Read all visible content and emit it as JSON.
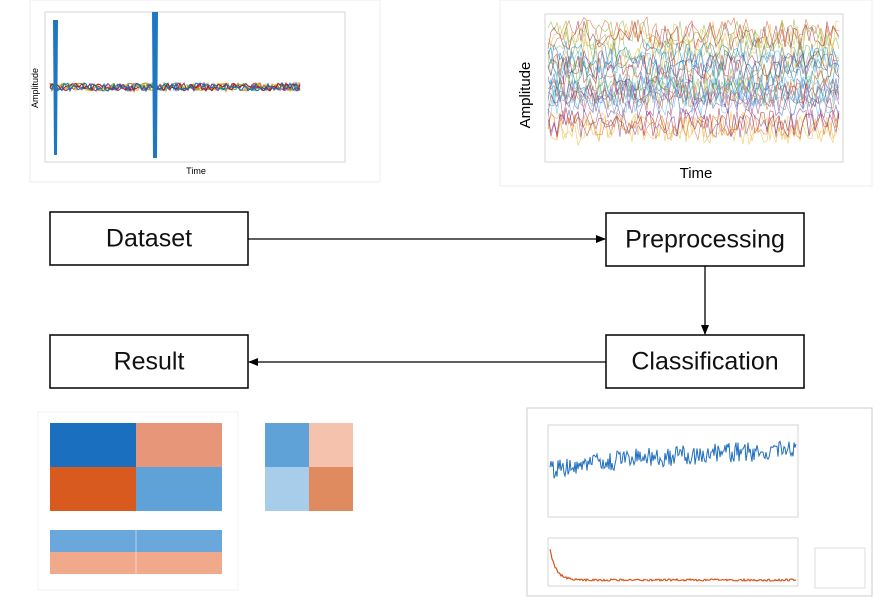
{
  "panels": [
    {
      "y_label": "Amplitude",
      "x_label": "Time"
    },
    {
      "y_label": "Amplitude",
      "x_label": "Time"
    }
  ],
  "nodes": [
    {
      "label": "Dataset"
    },
    {
      "label": "Preprocessing"
    },
    {
      "label": "Classification"
    },
    {
      "label": "Result"
    }
  ]
}
